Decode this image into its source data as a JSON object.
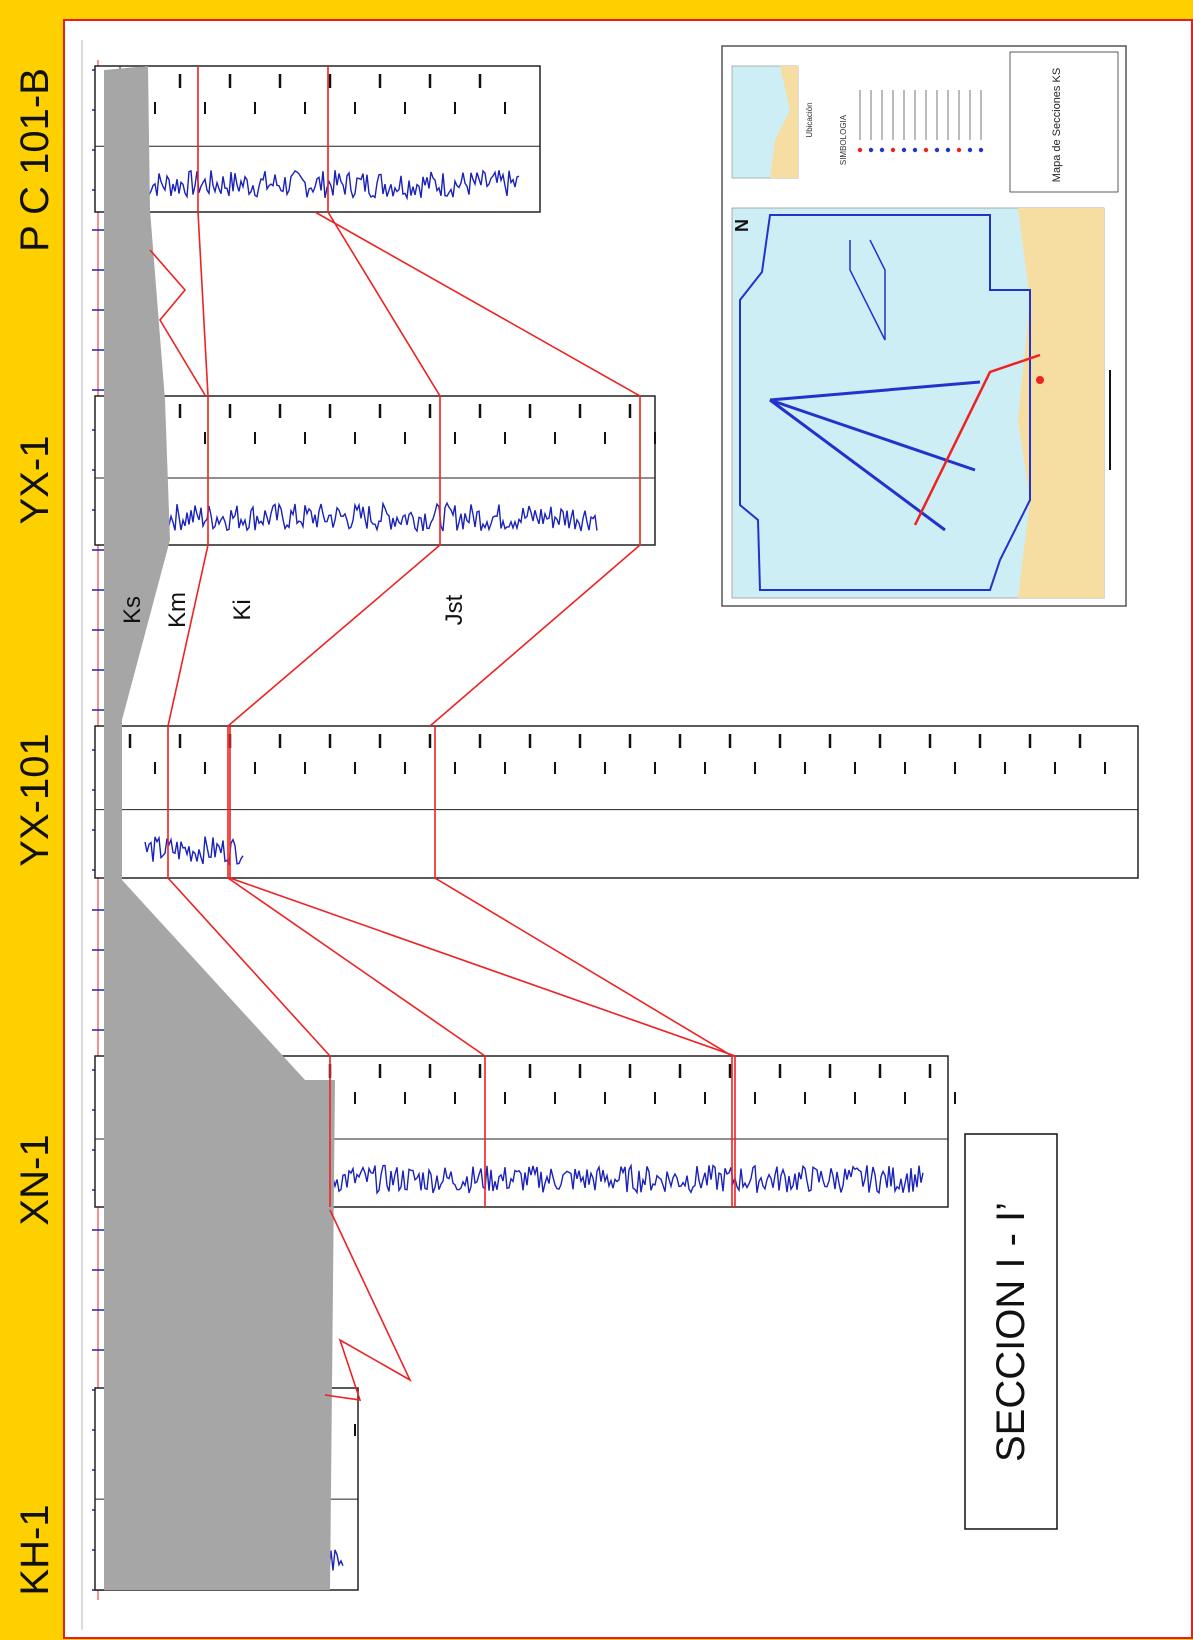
{
  "section_title": "SECCION I - I’",
  "wells": [
    {
      "name": "P C 101-B"
    },
    {
      "name": "YX-1"
    },
    {
      "name": "YX-101"
    },
    {
      "name": "XN-1"
    },
    {
      "name": "KH-1"
    }
  ],
  "formations": [
    "Ks",
    "Km",
    "Ki",
    "Jst"
  ],
  "map_inset": {
    "north_label": "N",
    "legend_heading": "SIMBOLOGIA",
    "location_heading": "Ubicación",
    "map_title": "Mapa de Secciones KS"
  },
  "colors": {
    "banner": "#fed000",
    "frame": "#e81e1e",
    "log_curve": "#1a22b8",
    "correlation": "#ee2222",
    "shale_fill": "#a6a6a6",
    "sea": "#cdeef4",
    "land": "#f6dea2"
  }
}
